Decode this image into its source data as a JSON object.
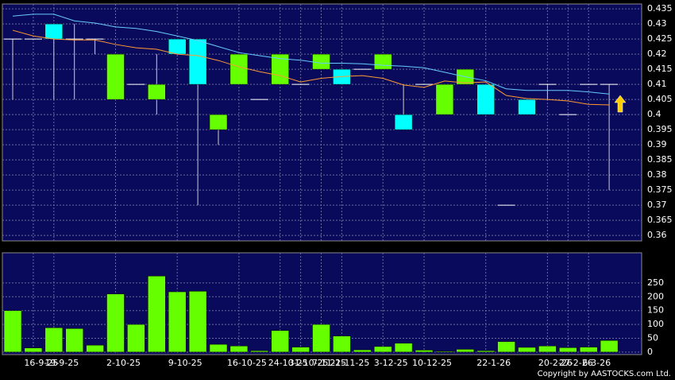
{
  "chart_data": {
    "type": "candlestick",
    "categories": [
      null,
      "16-9-25",
      "19-9-25",
      null,
      null,
      "2-10-25",
      null,
      null,
      "9-10-25",
      null,
      null,
      "16-10-25",
      null,
      "24-10-25",
      "31-10-25",
      "7-11-25",
      "21-11-25",
      null,
      "3-12-25",
      null,
      "10-12-25",
      null,
      null,
      "22-1-26",
      null,
      null,
      "20-2-26",
      "27-2-26",
      "6-3-26",
      null
    ],
    "open": [
      0.425,
      0.425,
      0.43,
      0.425,
      0.425,
      0.405,
      0.41,
      0.405,
      0.425,
      0.425,
      0.395,
      0.41,
      0.405,
      0.41,
      0.41,
      0.415,
      0.415,
      0.415,
      0.415,
      0.4,
      0.41,
      0.4,
      0.41,
      0.41,
      0.37,
      0.405,
      0.41,
      0.4,
      0.41,
      0.41
    ],
    "high": [
      0.425,
      0.425,
      0.43,
      0.43,
      0.425,
      0.42,
      0.41,
      0.42,
      0.425,
      0.425,
      0.4,
      0.42,
      0.405,
      0.42,
      0.41,
      0.42,
      0.415,
      0.415,
      0.42,
      0.41,
      0.41,
      0.41,
      0.415,
      0.41,
      0.37,
      0.405,
      0.41,
      0.4,
      0.41,
      0.41
    ],
    "low": [
      0.405,
      0.425,
      0.405,
      0.405,
      0.42,
      0.405,
      0.41,
      0.4,
      0.42,
      0.37,
      0.39,
      0.41,
      0.405,
      0.41,
      0.41,
      0.415,
      0.41,
      0.415,
      0.415,
      0.395,
      0.41,
      0.4,
      0.41,
      0.4,
      0.37,
      0.4,
      0.405,
      0.4,
      0.41,
      0.375
    ],
    "close": [
      0.425,
      0.425,
      0.425,
      0.425,
      0.425,
      0.42,
      0.41,
      0.41,
      0.42,
      0.41,
      0.4,
      0.42,
      0.405,
      0.42,
      0.41,
      0.42,
      0.41,
      0.415,
      0.42,
      0.395,
      0.41,
      0.41,
      0.415,
      0.4,
      0.37,
      0.4,
      0.41,
      0.4,
      0.41,
      0.41
    ],
    "up_color": "#66ff00",
    "down_color": "#00ffff",
    "flat_color": "#ffffff",
    "ma_lines": [
      {
        "color": "#66ccff",
        "values": [
          0.4326,
          0.4332,
          0.4332,
          0.431,
          0.4303,
          0.429,
          0.4285,
          0.4275,
          0.426,
          0.4245,
          0.4225,
          0.4205,
          0.4195,
          0.4185,
          0.418,
          0.417,
          0.417,
          0.4168,
          0.4163,
          0.416,
          0.4155,
          0.414,
          0.4125,
          0.4112,
          0.4085,
          0.408,
          0.408,
          0.408,
          0.4075,
          0.4068
        ]
      },
      {
        "color": "#ff9933",
        "values": [
          0.4279,
          0.426,
          0.425,
          0.4247,
          0.4247,
          0.4232,
          0.4221,
          0.4216,
          0.42,
          0.4195,
          0.4179,
          0.4158,
          0.4142,
          0.4129,
          0.4108,
          0.412,
          0.4126,
          0.4129,
          0.412,
          0.4098,
          0.409,
          0.4111,
          0.4105,
          0.4108,
          0.4063,
          0.4053,
          0.405,
          0.4045,
          0.4034,
          0.4032
        ]
      }
    ],
    "ylim": [
      0.3582,
      0.4366
    ],
    "yticks": [
      0.36,
      0.365,
      0.37,
      0.375,
      0.38,
      0.385,
      0.39,
      0.395,
      0.4,
      0.405,
      0.41,
      0.415,
      0.42,
      0.425,
      0.43,
      0.435
    ],
    "volume": {
      "type": "bar",
      "color": "#66ff00",
      "values": [
        150,
        15,
        88,
        85,
        25,
        210,
        100,
        275,
        218,
        220,
        28,
        22,
        5,
        78,
        18,
        100,
        58,
        8,
        20,
        32,
        7,
        3,
        10,
        5,
        38,
        17,
        22,
        16,
        18,
        42
      ],
      "ylim": [
        -9,
        359
      ],
      "yticks": [
        0,
        50,
        100,
        150,
        200,
        250
      ]
    },
    "grid": true,
    "copyright": "Copyright by AASTOCKS.com Ltd."
  }
}
